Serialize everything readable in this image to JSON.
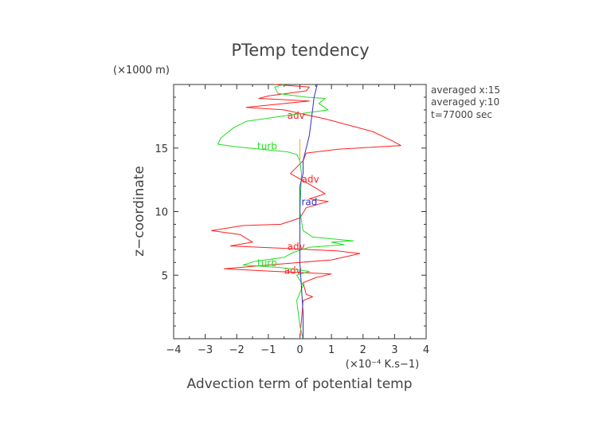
{
  "chart_data": {
    "type": "line",
    "title": "PTemp tendency",
    "xlabel": "Advection term of potential temp",
    "ylabel": "z−coordinate",
    "x_unit": "(×10⁻⁴ K.s−1)",
    "y_unit": "(×1000 m)",
    "xlim": [
      -4,
      4
    ],
    "ylim": [
      0,
      20
    ],
    "xticks": [
      -4,
      -3,
      -2,
      -1,
      0,
      1,
      2,
      3,
      4
    ],
    "yticks": [
      5,
      10,
      15
    ],
    "grid": false,
    "legend": "none",
    "annotations": [
      "averaged  x:15",
      "averaged  y:10",
      "t=77000 sec"
    ],
    "series": [
      {
        "name": "adv",
        "color": "#ff2020",
        "labels": [
          {
            "text": "adv",
            "x": -0.4,
            "y": 17.3
          },
          {
            "text": "adv",
            "x": 0.05,
            "y": 12.3
          },
          {
            "text": "adv",
            "x": -0.4,
            "y": 7.0
          },
          {
            "text": "adv",
            "x": -0.5,
            "y": 5.1
          }
        ],
        "points": [
          [
            -0.8,
            20
          ],
          [
            0.3,
            19.8
          ],
          [
            0.2,
            19.5
          ],
          [
            -1.0,
            19.1
          ],
          [
            -1.3,
            18.9
          ],
          [
            0.3,
            18.7
          ],
          [
            -1.7,
            18.2
          ],
          [
            -0.5,
            18.0
          ],
          [
            0.8,
            17.3
          ],
          [
            2.3,
            16.3
          ],
          [
            2.9,
            15.6
          ],
          [
            3.2,
            15.2
          ],
          [
            1.2,
            14.9
          ],
          [
            0.2,
            14.6
          ],
          [
            0.1,
            14.0
          ],
          [
            -0.3,
            13.0
          ],
          [
            0.4,
            12.0
          ],
          [
            0.8,
            11.4
          ],
          [
            0.3,
            11.0
          ],
          [
            0.9,
            10.8
          ],
          [
            0.2,
            10.3
          ],
          [
            0,
            9.5
          ],
          [
            -0.6,
            9.0
          ],
          [
            -1.8,
            8.9
          ],
          [
            -2.8,
            8.5
          ],
          [
            -1.9,
            8.2
          ],
          [
            -1.5,
            7.6
          ],
          [
            -2.2,
            7.3
          ],
          [
            -0.4,
            7.1
          ],
          [
            1.2,
            6.9
          ],
          [
            1.9,
            6.7
          ],
          [
            1.0,
            6.2
          ],
          [
            -0.5,
            5.9
          ],
          [
            -2.4,
            5.5
          ],
          [
            -0.8,
            5.3
          ],
          [
            1.0,
            5.1
          ],
          [
            0.5,
            4.8
          ],
          [
            0.1,
            4.4
          ],
          [
            0.2,
            3.5
          ],
          [
            0.4,
            3.3
          ],
          [
            0.1,
            3.0
          ],
          [
            0.05,
            1.5
          ],
          [
            0,
            0
          ]
        ]
      },
      {
        "name": "turb",
        "color": "#22dd22",
        "labels": [
          {
            "text": "turb",
            "x": -1.35,
            "y": 14.9
          },
          {
            "text": "turb",
            "x": -1.35,
            "y": 5.7
          }
        ],
        "points": [
          [
            -0.5,
            20
          ],
          [
            -0.8,
            19.8
          ],
          [
            -0.7,
            19.3
          ],
          [
            0.2,
            19.0
          ],
          [
            0.8,
            18.9
          ],
          [
            0.6,
            18.5
          ],
          [
            0.9,
            18.0
          ],
          [
            -0.3,
            17.6
          ],
          [
            -1.7,
            17.1
          ],
          [
            -2.1,
            16.6
          ],
          [
            -2.5,
            15.8
          ],
          [
            -2.6,
            15.3
          ],
          [
            -2.0,
            15.1
          ],
          [
            -0.4,
            14.7
          ],
          [
            -0.1,
            14.5
          ],
          [
            0,
            14.0
          ],
          [
            0.05,
            13.0
          ],
          [
            0,
            10.0
          ],
          [
            0.1,
            8.5
          ],
          [
            0.4,
            8.0
          ],
          [
            1.7,
            7.7
          ],
          [
            1.0,
            7.6
          ],
          [
            1.4,
            7.4
          ],
          [
            0.3,
            7.2
          ],
          [
            -0.2,
            6.8
          ],
          [
            -0.5,
            6.4
          ],
          [
            -1.4,
            6.1
          ],
          [
            -1.8,
            5.8
          ],
          [
            -0.6,
            5.6
          ],
          [
            0.3,
            5.3
          ],
          [
            -0.1,
            5.0
          ],
          [
            0.1,
            4.2
          ],
          [
            -0.1,
            3.0
          ],
          [
            0,
            1.0
          ],
          [
            0.1,
            0
          ]
        ]
      },
      {
        "name": "rad",
        "color": "#3030cc",
        "labels": [
          {
            "text": "rad",
            "x": 0.05,
            "y": 10.5
          }
        ],
        "points": [
          [
            0.55,
            20
          ],
          [
            0.45,
            19
          ],
          [
            0.4,
            18
          ],
          [
            0.3,
            16
          ],
          [
            0.1,
            14
          ],
          [
            0.1,
            13
          ],
          [
            0,
            12
          ],
          [
            0,
            11
          ],
          [
            0,
            10
          ],
          [
            0,
            8
          ],
          [
            0,
            6
          ],
          [
            0.05,
            4
          ],
          [
            0.1,
            2
          ],
          [
            0.1,
            0
          ]
        ]
      },
      {
        "name": "",
        "color": "#f5a623",
        "labels": [],
        "points": [
          [
            0,
            15.7
          ],
          [
            0,
            14.0
          ]
        ]
      }
    ]
  }
}
